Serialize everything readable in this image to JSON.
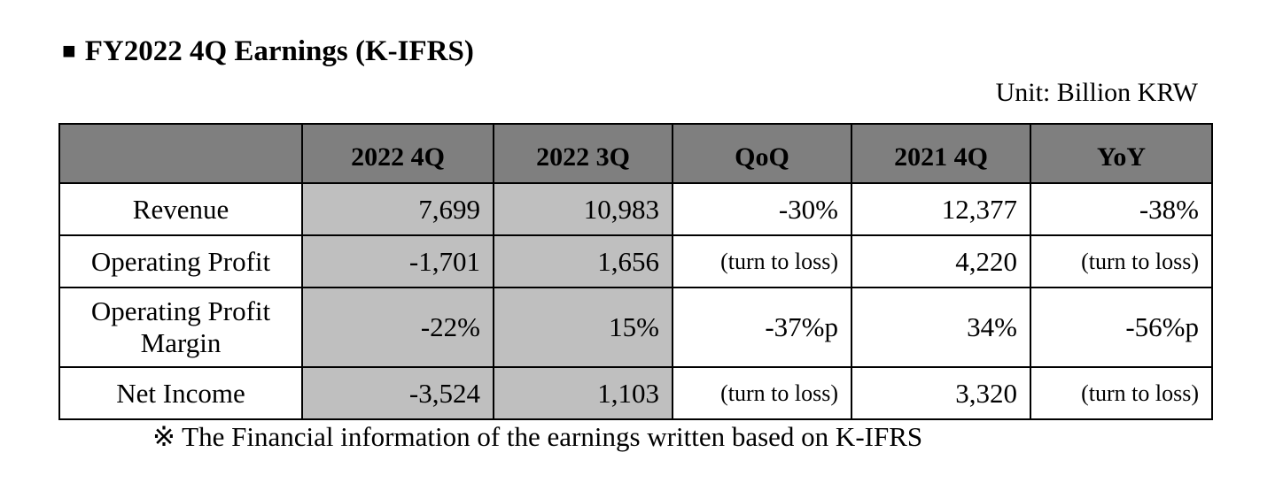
{
  "title": {
    "bullet": "■",
    "text": "FY2022 4Q Earnings (K-IFRS)"
  },
  "unit": "Unit: Billion KRW",
  "table": {
    "columns": [
      "",
      "2022 4Q",
      "2022 3Q",
      "QoQ",
      "2021 4Q",
      "YoY"
    ],
    "rows": [
      {
        "label": "Revenue",
        "cells": [
          "7,699",
          "10,983",
          "-30%",
          "12,377",
          "-38%"
        ]
      },
      {
        "label": "Operating Profit",
        "cells": [
          "-1,701",
          "1,656",
          "(turn to loss)",
          "4,220",
          "(turn to loss)"
        ]
      },
      {
        "label": "Operating Profit Margin",
        "cells": [
          "-22%",
          "15%",
          "-37%p",
          "34%",
          "-56%p"
        ]
      },
      {
        "label": "Net Income",
        "cells": [
          "-3,524",
          "1,103",
          "(turn to loss)",
          "3,320",
          "(turn to loss)"
        ]
      }
    ]
  },
  "note": "※ The Financial information of the earnings written based on K-IFRS",
  "colors": {
    "header_bg": "#7f7f7f",
    "shaded_col_bg": "#bfbfbf"
  }
}
